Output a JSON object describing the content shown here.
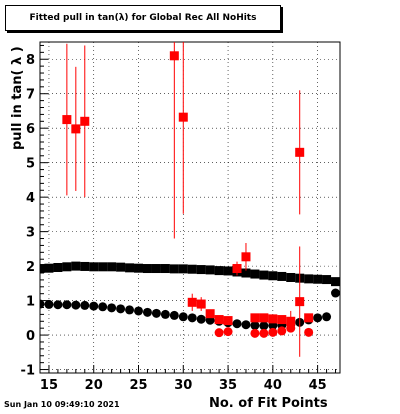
{
  "chart_data": {
    "type": "scatter",
    "title": "Fitted pull in tan(λ) for Global Rec All NoHits",
    "xlabel": "No. of Fit Points",
    "ylabel": "pull in tan( λ )",
    "xlim": [
      14,
      47.5
    ],
    "ylim": [
      -1.1,
      8.5
    ],
    "x_ticks": [
      15,
      20,
      25,
      30,
      35,
      40,
      45
    ],
    "y_ticks": [
      -1,
      0,
      1,
      2,
      3,
      4,
      5,
      6,
      7,
      8
    ],
    "grid": true,
    "series": [
      {
        "marker": "square",
        "color": "#000000",
        "x": [
          14,
          15,
          16,
          17,
          18,
          19,
          20,
          21,
          22,
          23,
          24,
          25,
          26,
          27,
          28,
          29,
          30,
          31,
          32,
          33,
          34,
          35,
          36,
          37,
          38,
          39,
          40,
          41,
          42,
          43,
          44,
          45,
          46,
          47
        ],
        "y": [
          1.93,
          1.94,
          1.96,
          1.98,
          2.0,
          1.99,
          1.98,
          1.98,
          1.98,
          1.97,
          1.95,
          1.94,
          1.93,
          1.93,
          1.93,
          1.92,
          1.92,
          1.91,
          1.9,
          1.89,
          1.87,
          1.86,
          1.83,
          1.8,
          1.77,
          1.74,
          1.72,
          1.7,
          1.67,
          1.65,
          1.63,
          1.62,
          1.61,
          1.55
        ]
      },
      {
        "marker": "circle",
        "color": "#000000",
        "x": [
          14,
          15,
          16,
          17,
          18,
          19,
          20,
          21,
          22,
          23,
          24,
          25,
          26,
          27,
          28,
          29,
          30,
          31,
          32,
          33,
          34,
          35,
          36,
          37,
          38,
          39,
          40,
          41,
          42,
          43,
          44,
          45,
          46,
          47
        ],
        "y": [
          0.9,
          0.89,
          0.88,
          0.88,
          0.87,
          0.86,
          0.84,
          0.82,
          0.79,
          0.76,
          0.73,
          0.7,
          0.66,
          0.63,
          0.6,
          0.57,
          0.53,
          0.5,
          0.46,
          0.43,
          0.4,
          0.36,
          0.33,
          0.3,
          0.28,
          0.27,
          0.28,
          0.29,
          0.31,
          0.37,
          0.44,
          0.5,
          0.53,
          1.22
        ]
      },
      {
        "marker": "square",
        "color": "#ff0000",
        "x": [
          17,
          18,
          19,
          29,
          30,
          31,
          32,
          33,
          34,
          35,
          36,
          37,
          38,
          39,
          40,
          41,
          42,
          43,
          43,
          44
        ],
        "y": [
          6.25,
          5.98,
          6.2,
          8.1,
          6.32,
          0.95,
          0.9,
          0.62,
          0.45,
          0.42,
          1.93,
          2.27,
          0.5,
          0.5,
          0.47,
          0.45,
          0.4,
          5.3,
          0.97,
          0.5
        ],
        "err": [
          2.2,
          1.8,
          2.2,
          5.3,
          2.8,
          0.25,
          0.2,
          0.12,
          0.1,
          0.1,
          0.2,
          0.4,
          0.1,
          0.1,
          0.1,
          0.1,
          0.3,
          1.8,
          1.6,
          0.12
        ]
      },
      {
        "marker": "circle",
        "color": "#ff0000",
        "x": [
          34,
          35,
          38,
          39,
          40,
          41,
          42,
          44
        ],
        "y": [
          0.07,
          0.1,
          0.05,
          0.05,
          0.08,
          0.12,
          0.2,
          0.08
        ]
      }
    ]
  },
  "footer": {
    "datestamp": "Sun Jan 10 09:49:10 2021"
  }
}
